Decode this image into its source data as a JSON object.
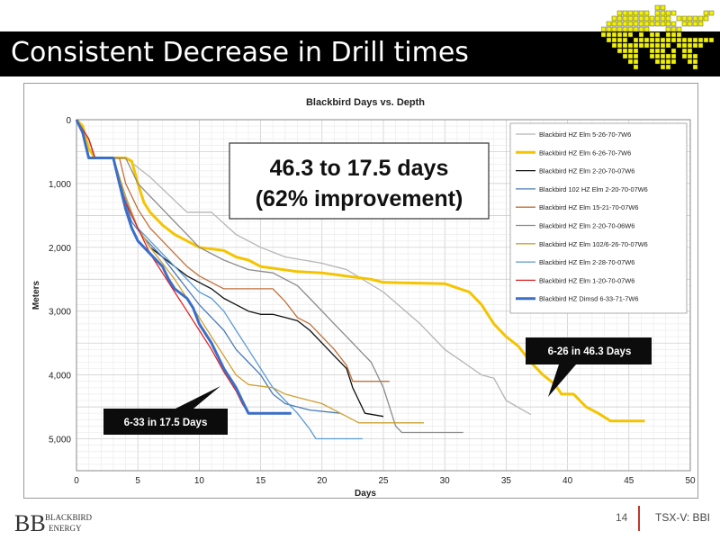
{
  "slide": {
    "title": "Consistent Decrease in Drill times",
    "page_number": "14",
    "ticker": "TSX-V: BBI",
    "brand_top": "BLACKBIRD",
    "brand_bottom": "ENERGY",
    "brand_initials": "BB"
  },
  "colors": {
    "title_bar": "#000000",
    "logo_yellow": "#f2f200",
    "divider": "#c0392b"
  },
  "chart_data": {
    "type": "line",
    "title": "Blackbird Days vs. Depth",
    "xlabel": "Days",
    "ylabel": "Meters",
    "xlim": [
      0,
      50
    ],
    "ylim": [
      0,
      5500
    ],
    "y_inverted": true,
    "x_ticks": [
      0,
      5,
      10,
      15,
      20,
      25,
      30,
      35,
      40,
      45,
      50
    ],
    "x_tick_labels": [
      "0",
      "5",
      "10",
      "15",
      "20",
      "25",
      "30",
      "35",
      "40",
      "45",
      "50"
    ],
    "y_ticks": [
      0,
      1000,
      2000,
      3000,
      4000,
      5000
    ],
    "y_tick_labels": [
      "0",
      "1,000",
      "2,000",
      "3,000",
      "4,000",
      "5,000"
    ],
    "grid": true,
    "legend_position": "top-right",
    "annotations": [
      {
        "text_lines": [
          "46.3 to 17.5 days",
          "(62% improvement)"
        ]
      },
      {
        "text": "6-26 in 46.3 Days"
      },
      {
        "text": "6-33 in 17.5 Days"
      }
    ],
    "series": [
      {
        "name": "Blackbird HZ Elm 5-26-70-7W6",
        "color": "#b5b5b5",
        "width": 1.3,
        "points": [
          [
            0,
            0
          ],
          [
            1,
            300
          ],
          [
            1.5,
            600
          ],
          [
            4,
            600
          ],
          [
            6,
            900
          ],
          [
            9,
            1450
          ],
          [
            11,
            1450
          ],
          [
            13,
            1800
          ],
          [
            15,
            2000
          ],
          [
            17,
            2150
          ],
          [
            20,
            2250
          ],
          [
            22,
            2350
          ],
          [
            25,
            2700
          ],
          [
            28,
            3200
          ],
          [
            30,
            3600
          ],
          [
            33,
            4000
          ],
          [
            34,
            4050
          ],
          [
            35,
            4400
          ],
          [
            37,
            4620
          ]
        ]
      },
      {
        "name": "Blackbird HZ Elm 6-26-70-7W6",
        "color": "#f5c400",
        "width": 3,
        "points": [
          [
            0,
            0
          ],
          [
            0.5,
            100
          ],
          [
            1,
            450
          ],
          [
            1.5,
            600
          ],
          [
            4,
            600
          ],
          [
            4.5,
            650
          ],
          [
            5,
            1000
          ],
          [
            5.5,
            1300
          ],
          [
            6,
            1450
          ],
          [
            7,
            1650
          ],
          [
            8,
            1800
          ],
          [
            9,
            1900
          ],
          [
            10,
            2000
          ],
          [
            12,
            2050
          ],
          [
            13,
            2150
          ],
          [
            14,
            2200
          ],
          [
            15,
            2300
          ],
          [
            18,
            2380
          ],
          [
            20,
            2400
          ],
          [
            24,
            2500
          ],
          [
            25,
            2550
          ],
          [
            30,
            2570
          ],
          [
            32,
            2700
          ],
          [
            33,
            2900
          ],
          [
            34,
            3200
          ],
          [
            35,
            3400
          ],
          [
            36,
            3550
          ],
          [
            37,
            3800
          ],
          [
            38,
            4000
          ],
          [
            39,
            4150
          ],
          [
            39.5,
            4300
          ],
          [
            40.5,
            4300
          ],
          [
            41.5,
            4500
          ],
          [
            42.5,
            4600
          ],
          [
            43.5,
            4720
          ],
          [
            46.3,
            4720
          ]
        ]
      },
      {
        "name": "Blackbird HZ Elm 2-20-70-07W6",
        "color": "#111111",
        "width": 1.3,
        "points": [
          [
            0,
            0
          ],
          [
            1,
            300
          ],
          [
            1.5,
            600
          ],
          [
            3,
            600
          ],
          [
            3.5,
            1000
          ],
          [
            4,
            1300
          ],
          [
            5,
            1700
          ],
          [
            6,
            2000
          ],
          [
            8,
            2300
          ],
          [
            9,
            2450
          ],
          [
            10,
            2550
          ],
          [
            11,
            2650
          ],
          [
            12,
            2800
          ],
          [
            13,
            2900
          ],
          [
            14,
            3000
          ],
          [
            15,
            3050
          ],
          [
            16,
            3050
          ],
          [
            17,
            3100
          ],
          [
            18,
            3150
          ],
          [
            19,
            3300
          ],
          [
            20,
            3500
          ],
          [
            21,
            3700
          ],
          [
            22,
            3900
          ],
          [
            22.5,
            4200
          ],
          [
            23,
            4400
          ],
          [
            23.5,
            4600
          ],
          [
            25,
            4650
          ]
        ]
      },
      {
        "name": "Blackbird 102 HZ Elm 2-20-70-07W6",
        "color": "#4a7ab5",
        "width": 1.3,
        "points": [
          [
            0,
            0
          ],
          [
            1,
            300
          ],
          [
            1.5,
            600
          ],
          [
            3,
            600
          ],
          [
            3.5,
            900
          ],
          [
            4,
            1300
          ],
          [
            4.5,
            1600
          ],
          [
            5.5,
            1850
          ],
          [
            7,
            2150
          ],
          [
            8,
            2400
          ],
          [
            9,
            2650
          ],
          [
            10,
            2900
          ],
          [
            11,
            3100
          ],
          [
            12,
            3300
          ],
          [
            13,
            3600
          ],
          [
            14,
            3800
          ],
          [
            15,
            4000
          ],
          [
            16,
            4300
          ],
          [
            17,
            4450
          ],
          [
            18,
            4500
          ],
          [
            19,
            4550
          ],
          [
            21.5,
            4600
          ]
        ]
      },
      {
        "name": "Blackbird HZ Elm 15-21-70-07W6",
        "color": "#c0703a",
        "width": 1.3,
        "points": [
          [
            0,
            0
          ],
          [
            1,
            300
          ],
          [
            1.5,
            600
          ],
          [
            3.5,
            600
          ],
          [
            4,
            1000
          ],
          [
            5,
            1400
          ],
          [
            6,
            1700
          ],
          [
            7,
            1900
          ],
          [
            8,
            2100
          ],
          [
            9,
            2300
          ],
          [
            10,
            2450
          ],
          [
            11,
            2550
          ],
          [
            12,
            2650
          ],
          [
            16,
            2650
          ],
          [
            17,
            2850
          ],
          [
            18,
            3100
          ],
          [
            19,
            3200
          ],
          [
            20,
            3400
          ],
          [
            21,
            3600
          ],
          [
            22,
            3850
          ],
          [
            22.5,
            4100
          ],
          [
            25.5,
            4100
          ]
        ]
      },
      {
        "name": "Blackbird HZ Elm 2-20-70-06W6",
        "color": "#8a8a8a",
        "width": 1.3,
        "points": [
          [
            0,
            0
          ],
          [
            1,
            300
          ],
          [
            1.5,
            600
          ],
          [
            4,
            600
          ],
          [
            5,
            1000
          ],
          [
            7,
            1400
          ],
          [
            9,
            1800
          ],
          [
            10,
            2000
          ],
          [
            12,
            2200
          ],
          [
            14,
            2350
          ],
          [
            16,
            2400
          ],
          [
            18,
            2600
          ],
          [
            19,
            2800
          ],
          [
            20,
            3000
          ],
          [
            21,
            3200
          ],
          [
            22,
            3400
          ],
          [
            23,
            3600
          ],
          [
            24,
            3800
          ],
          [
            24.5,
            4000
          ],
          [
            25,
            4200
          ],
          [
            25.5,
            4500
          ],
          [
            26,
            4800
          ],
          [
            26.5,
            4900
          ],
          [
            31.5,
            4900
          ]
        ]
      },
      {
        "name": "Blackbird HZ Elm 102/6-26-70-07W6",
        "color": "#cfa030",
        "width": 1.3,
        "points": [
          [
            0,
            0
          ],
          [
            1,
            300
          ],
          [
            1.5,
            600
          ],
          [
            3,
            600
          ],
          [
            4,
            1200
          ],
          [
            5,
            1700
          ],
          [
            6,
            2000
          ],
          [
            7,
            2250
          ],
          [
            8,
            2500
          ],
          [
            9,
            2800
          ],
          [
            10,
            3100
          ],
          [
            11,
            3400
          ],
          [
            12,
            3700
          ],
          [
            13,
            4000
          ],
          [
            14,
            4150
          ],
          [
            16,
            4200
          ],
          [
            17,
            4300
          ],
          [
            18,
            4350
          ],
          [
            19,
            4400
          ],
          [
            20,
            4450
          ],
          [
            21,
            4550
          ],
          [
            22,
            4650
          ],
          [
            23,
            4750
          ],
          [
            28.3,
            4750
          ]
        ]
      },
      {
        "name": "Blackbird HZ Elm 2-28-70-07W6",
        "color": "#5b9bd5",
        "width": 1.3,
        "points": [
          [
            0,
            0
          ],
          [
            1,
            300
          ],
          [
            1.5,
            600
          ],
          [
            3,
            600
          ],
          [
            3.5,
            1000
          ],
          [
            4.5,
            1500
          ],
          [
            5,
            1700
          ],
          [
            6,
            1900
          ],
          [
            7,
            2100
          ],
          [
            8,
            2300
          ],
          [
            9,
            2500
          ],
          [
            10,
            2700
          ],
          [
            11,
            2800
          ],
          [
            12,
            3000
          ],
          [
            13,
            3300
          ],
          [
            14,
            3600
          ],
          [
            15,
            3900
          ],
          [
            16,
            4200
          ],
          [
            17,
            4400
          ],
          [
            18,
            4600
          ],
          [
            19,
            4850
          ],
          [
            19.5,
            5000
          ],
          [
            23.3,
            5000
          ]
        ]
      },
      {
        "name": "Blackbird HZ Elm 1-20-70-07W6",
        "color": "#e02424",
        "width": 1.3,
        "points": [
          [
            0,
            0
          ],
          [
            1,
            300
          ],
          [
            1.5,
            600
          ],
          [
            3,
            600
          ],
          [
            3.5,
            1000
          ],
          [
            4,
            1300
          ],
          [
            5,
            1700
          ],
          [
            6,
            2100
          ],
          [
            7,
            2400
          ],
          [
            8,
            2700
          ],
          [
            9,
            3000
          ],
          [
            10,
            3300
          ],
          [
            11,
            3600
          ],
          [
            12,
            3950
          ],
          [
            13,
            4250
          ],
          [
            13.5,
            4450
          ],
          [
            14,
            4600
          ],
          [
            16,
            4600
          ]
        ]
      },
      {
        "name": "Blackbird HZ Dimsd 6-33-71-7W6",
        "color": "#3b6fc7",
        "width": 3,
        "points": [
          [
            0,
            0
          ],
          [
            0.5,
            200
          ],
          [
            1,
            600
          ],
          [
            3,
            600
          ],
          [
            3.5,
            1000
          ],
          [
            4,
            1400
          ],
          [
            4.5,
            1700
          ],
          [
            5,
            1900
          ],
          [
            6,
            2100
          ],
          [
            7,
            2300
          ],
          [
            7.5,
            2500
          ],
          [
            8,
            2650
          ],
          [
            9,
            2800
          ],
          [
            9.5,
            2950
          ],
          [
            10,
            3200
          ],
          [
            11,
            3500
          ],
          [
            12,
            3900
          ],
          [
            13,
            4200
          ],
          [
            13.5,
            4400
          ],
          [
            14,
            4600
          ],
          [
            17.5,
            4600
          ]
        ]
      }
    ]
  }
}
